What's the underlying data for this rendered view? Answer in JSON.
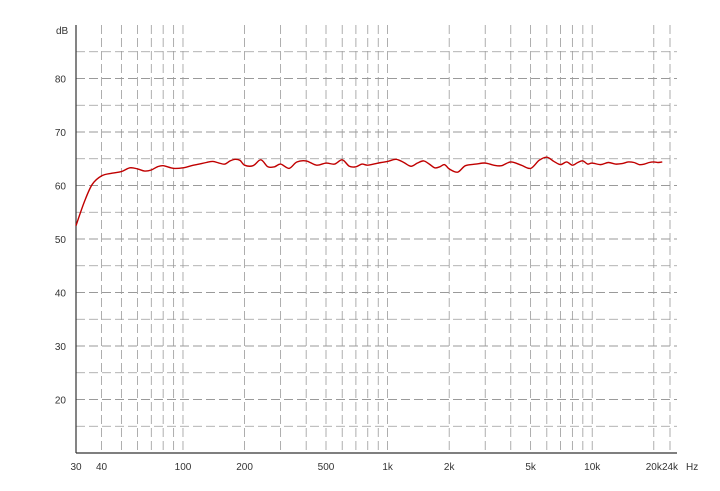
{
  "chart_data": {
    "type": "line",
    "title": "",
    "xlabel": "",
    "ylabel": "",
    "y_unit_label": "dB",
    "x_unit_label": "Hz",
    "x_scale": "log",
    "xlim": [
      30,
      24000
    ],
    "ylim": [
      10,
      90
    ],
    "x_ticks": [
      {
        "value": 30,
        "label": "30"
      },
      {
        "value": 40,
        "label": "40"
      },
      {
        "value": 100,
        "label": "100"
      },
      {
        "value": 200,
        "label": "200"
      },
      {
        "value": 500,
        "label": "500"
      },
      {
        "value": 1000,
        "label": "1k"
      },
      {
        "value": 2000,
        "label": "2k"
      },
      {
        "value": 5000,
        "label": "5k"
      },
      {
        "value": 10000,
        "label": "10k"
      },
      {
        "value": 20000,
        "label": "20k"
      },
      {
        "value": 24000,
        "label": "24k"
      }
    ],
    "y_ticks": [
      {
        "value": 20,
        "label": "20"
      },
      {
        "value": 30,
        "label": "30"
      },
      {
        "value": 40,
        "label": "40"
      },
      {
        "value": 50,
        "label": "50"
      },
      {
        "value": 60,
        "label": "60"
      },
      {
        "value": 70,
        "label": "70"
      },
      {
        "value": 80,
        "label": "80"
      }
    ],
    "grid": true,
    "series": [
      {
        "color": "#c00000",
        "x": [
          30,
          33,
          36,
          40,
          45,
          50,
          55,
          60,
          65,
          70,
          75,
          80,
          90,
          100,
          110,
          120,
          130,
          140,
          150,
          160,
          170,
          180,
          190,
          200,
          220,
          240,
          260,
          280,
          300,
          330,
          360,
          400,
          450,
          500,
          550,
          600,
          650,
          700,
          750,
          800,
          900,
          1000,
          1100,
          1200,
          1300,
          1400,
          1500,
          1600,
          1700,
          1800,
          1900,
          2000,
          2200,
          2400,
          2700,
          3000,
          3300,
          3600,
          4000,
          4500,
          5000,
          5500,
          6000,
          6500,
          7000,
          7500,
          8000,
          8500,
          9000,
          9500,
          10000,
          11000,
          12000,
          13000,
          14000,
          15000,
          16000,
          17000,
          18000,
          19000,
          20000,
          21000,
          22000
        ],
        "y": [
          52.5,
          57.0,
          60.2,
          61.8,
          62.3,
          62.6,
          63.3,
          63.1,
          62.7,
          62.9,
          63.5,
          63.7,
          63.2,
          63.3,
          63.7,
          64.0,
          64.3,
          64.5,
          64.2,
          64.0,
          64.6,
          64.9,
          64.7,
          63.8,
          63.7,
          64.8,
          63.5,
          63.5,
          64.0,
          63.2,
          64.4,
          64.6,
          63.8,
          64.2,
          64.0,
          64.8,
          63.6,
          63.5,
          64.0,
          63.8,
          64.2,
          64.5,
          64.9,
          64.3,
          63.6,
          64.2,
          64.6,
          64.0,
          63.3,
          63.5,
          63.9,
          63.1,
          62.5,
          63.7,
          64.0,
          64.2,
          63.8,
          63.7,
          64.4,
          63.8,
          63.2,
          64.7,
          65.3,
          64.5,
          63.9,
          64.4,
          63.8,
          64.3,
          64.6,
          64.0,
          64.2,
          63.9,
          64.3,
          64.0,
          64.1,
          64.4,
          64.3,
          63.9,
          64.0,
          64.3,
          64.4,
          64.3,
          64.4
        ]
      }
    ]
  }
}
